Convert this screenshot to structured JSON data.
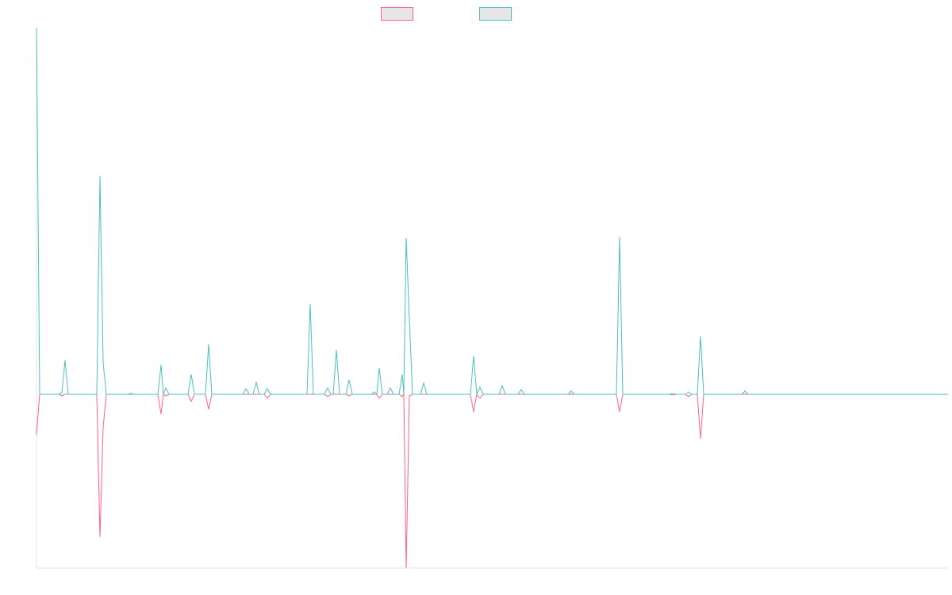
{
  "chart_data": {
    "type": "line",
    "x": [
      46,
      50,
      74,
      78,
      82,
      86,
      122,
      126,
      130,
      134,
      161,
      165,
      169,
      199,
      203,
      206,
      209,
      213,
      237,
      241,
      245,
      259,
      263,
      267,
      306,
      310,
      314,
      319,
      323,
      327,
      333,
      337,
      341,
      387,
      391,
      395,
      409,
      413,
      417,
      420,
      424,
      428,
      436,
      440,
      444,
      468,
      472,
      475,
      478,
      482,
      488,
      492,
      496,
      503,
      507,
      509,
      512,
      516,
      520,
      530,
      534,
      538,
      593,
      597,
      601,
      605,
      609,
      629,
      633,
      637,
      653,
      657,
      661,
      716,
      720,
      724,
      777,
      781,
      785,
      844,
      848,
      852,
      864,
      868,
      872,
      879,
      883,
      887,
      935,
      939,
      943,
      1195
    ],
    "series": [
      {
        "color": "#ff6384",
        "values": [
          -51,
          0,
          0,
          -2,
          0,
          0,
          0,
          -180,
          -42,
          0,
          0,
          0,
          0,
          0,
          -25,
          0,
          -2,
          0,
          0,
          -9,
          0,
          0,
          -19,
          0,
          0,
          0,
          0,
          0,
          0,
          0,
          0,
          -5,
          0,
          0,
          0,
          0,
          0,
          -3,
          0,
          0,
          0,
          0,
          0,
          -2,
          0,
          0,
          0,
          0,
          -5,
          0,
          0,
          0,
          0,
          0,
          -3,
          0,
          -219,
          -2,
          0,
          0,
          0,
          0,
          0,
          -22,
          0,
          -5,
          0,
          0,
          0,
          0,
          0,
          0,
          0,
          0,
          0,
          0,
          0,
          -22,
          0,
          0,
          -1,
          0,
          0,
          -3,
          0,
          0,
          -56,
          0,
          0,
          0,
          0,
          0
        ]
      },
      {
        "color": "#4bc0c0",
        "values": [
          462,
          0,
          0,
          2,
          43,
          0,
          0,
          275,
          40,
          0,
          0,
          1,
          0,
          0,
          37,
          0,
          8,
          0,
          0,
          25,
          0,
          0,
          63,
          0,
          0,
          7,
          0,
          0,
          15,
          0,
          0,
          7,
          0,
          0,
          114,
          0,
          0,
          8,
          0,
          0,
          56,
          0,
          0,
          18,
          0,
          0,
          3,
          0,
          33,
          0,
          0,
          8,
          0,
          0,
          25,
          0,
          197,
          94,
          0,
          0,
          14,
          0,
          0,
          48,
          0,
          9,
          0,
          0,
          11,
          0,
          0,
          6,
          0,
          0,
          4,
          0,
          0,
          198,
          0,
          0,
          1,
          0,
          0,
          3,
          0,
          0,
          73,
          0,
          0,
          4,
          0,
          0
        ]
      }
    ],
    "xlim": [
      46,
      1195
    ],
    "ylim": [
      -219,
      462
    ]
  }
}
